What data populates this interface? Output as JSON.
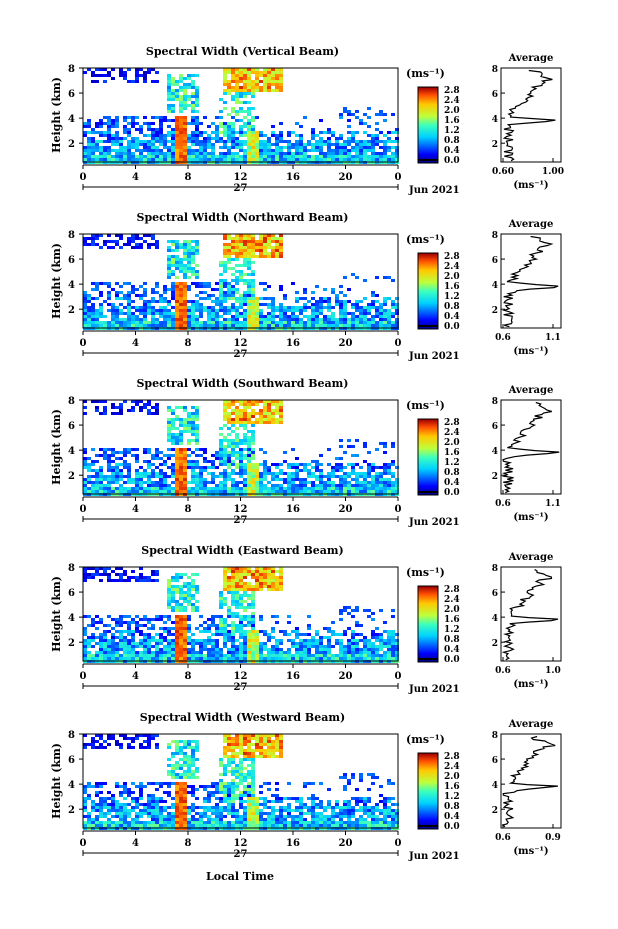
{
  "figure": {
    "x_axis_label": "Local Time",
    "date_label": "Jun 2021",
    "day_label": "27"
  },
  "chart_data": [
    {
      "type": "heatmap",
      "title": "Spectral Width (Vertical Beam)",
      "ylabel": "Height (km)",
      "xticks": [
        "0",
        "4",
        "8",
        "12",
        "16",
        "20",
        "0"
      ],
      "xlim": [
        0,
        24
      ],
      "yticks": [
        "2",
        "4",
        "6",
        "8"
      ],
      "ylim": [
        0.5,
        8
      ],
      "colorbar": {
        "unit": "(ms⁻¹)",
        "ticks": [
          "0.0",
          "0.4",
          "0.8",
          "1.2",
          "1.6",
          "2.0",
          "2.4",
          "2.8"
        ],
        "range": [
          0,
          3.0
        ]
      },
      "average": {
        "title": "Average",
        "xunit": "(ms⁻¹)",
        "xticks": [
          "0.60",
          "1.00"
        ],
        "xlim": [
          0.6,
          1.0
        ]
      }
    },
    {
      "type": "heatmap",
      "title": "Spectral Width (Northward Beam)",
      "ylabel": "Height (km)",
      "xticks": [
        "0",
        "4",
        "8",
        "12",
        "16",
        "20",
        "0"
      ],
      "xlim": [
        0,
        24
      ],
      "yticks": [
        "2",
        "4",
        "6",
        "8"
      ],
      "ylim": [
        0.5,
        8
      ],
      "colorbar": {
        "unit": "(ms⁻¹)",
        "ticks": [
          "0.0",
          "0.4",
          "0.8",
          "1.2",
          "1.6",
          "2.0",
          "2.4",
          "2.8"
        ],
        "range": [
          0,
          3.0
        ]
      },
      "average": {
        "title": "Average",
        "xunit": "(ms⁻¹)",
        "xticks": [
          "0.6",
          "1.1"
        ],
        "xlim": [
          0.6,
          1.1
        ]
      }
    },
    {
      "type": "heatmap",
      "title": "Spectral Width (Southward Beam)",
      "ylabel": "Height (km)",
      "xticks": [
        "0",
        "4",
        "8",
        "12",
        "16",
        "20",
        "0"
      ],
      "xlim": [
        0,
        24
      ],
      "yticks": [
        "2",
        "4",
        "6",
        "8"
      ],
      "ylim": [
        0.5,
        8
      ],
      "colorbar": {
        "unit": "(ms⁻¹)",
        "ticks": [
          "0.0",
          "0.4",
          "0.8",
          "1.2",
          "1.6",
          "2.0",
          "2.4",
          "2.8"
        ],
        "range": [
          0,
          3.0
        ]
      },
      "average": {
        "title": "Average",
        "xunit": "(ms⁻¹)",
        "xticks": [
          "0.6",
          "1.1"
        ],
        "xlim": [
          0.6,
          1.1
        ]
      }
    },
    {
      "type": "heatmap",
      "title": "Spectral Width (Eastward Beam)",
      "ylabel": "Height (km)",
      "xticks": [
        "0",
        "4",
        "8",
        "12",
        "16",
        "20",
        "0"
      ],
      "xlim": [
        0,
        24
      ],
      "yticks": [
        "2",
        "4",
        "6",
        "8"
      ],
      "ylim": [
        0.5,
        8
      ],
      "colorbar": {
        "unit": "(ms⁻¹)",
        "ticks": [
          "0.0",
          "0.4",
          "0.8",
          "1.2",
          "1.6",
          "2.0",
          "2.4",
          "2.8"
        ],
        "range": [
          0,
          3.0
        ]
      },
      "average": {
        "title": "Average",
        "xunit": "(ms⁻¹)",
        "xticks": [
          "0.6",
          "1.0"
        ],
        "xlim": [
          0.6,
          1.0
        ]
      }
    },
    {
      "type": "heatmap",
      "title": "Spectral Width (Westward Beam)",
      "ylabel": "Height (km)",
      "xticks": [
        "0",
        "4",
        "8",
        "12",
        "16",
        "20",
        "0"
      ],
      "xlim": [
        0,
        24
      ],
      "yticks": [
        "2",
        "4",
        "6",
        "8"
      ],
      "ylim": [
        0.5,
        8
      ],
      "colorbar": {
        "unit": "(ms⁻¹)",
        "ticks": [
          "0.0",
          "0.4",
          "0.8",
          "1.2",
          "1.6",
          "2.0",
          "2.4",
          "2.8"
        ],
        "range": [
          0,
          3.0
        ]
      },
      "average": {
        "title": "Average",
        "xunit": "(ms⁻¹)",
        "xticks": [
          "0.6",
          "0.9"
        ],
        "xlim": [
          0.6,
          0.9
        ]
      }
    }
  ]
}
